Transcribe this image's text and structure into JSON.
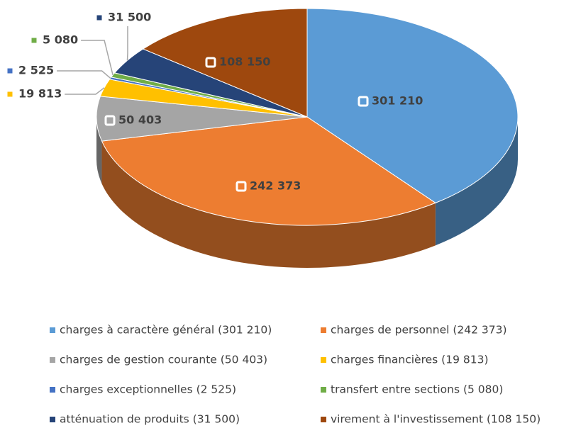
{
  "chart_data": {
    "type": "pie",
    "categories": [
      "charges à caractère général (301 210)",
      "charges de personnel (242 373)",
      "charges de gestion courante (50 403)",
      "charges financières (19 813)",
      "charges exceptionnelles (2 525)",
      "transfert entre sections (5 080)",
      "atténuation de produits (31 500)",
      "virement à l'investissement (108 150)"
    ],
    "values": [
      301210,
      242373,
      50403,
      19813,
      2525,
      5080,
      31500,
      108150
    ],
    "value_labels": [
      "301 210",
      "242 373",
      "50 403",
      "19 813",
      "2 525",
      "5 080",
      "31 500",
      "108 150"
    ],
    "colors": [
      "#5b9bd5",
      "#ed7d31",
      "#a5a5a5",
      "#ffc000",
      "#4472c4",
      "#70ad47",
      "#264478",
      "#9e480e"
    ],
    "legend": "bottom"
  }
}
